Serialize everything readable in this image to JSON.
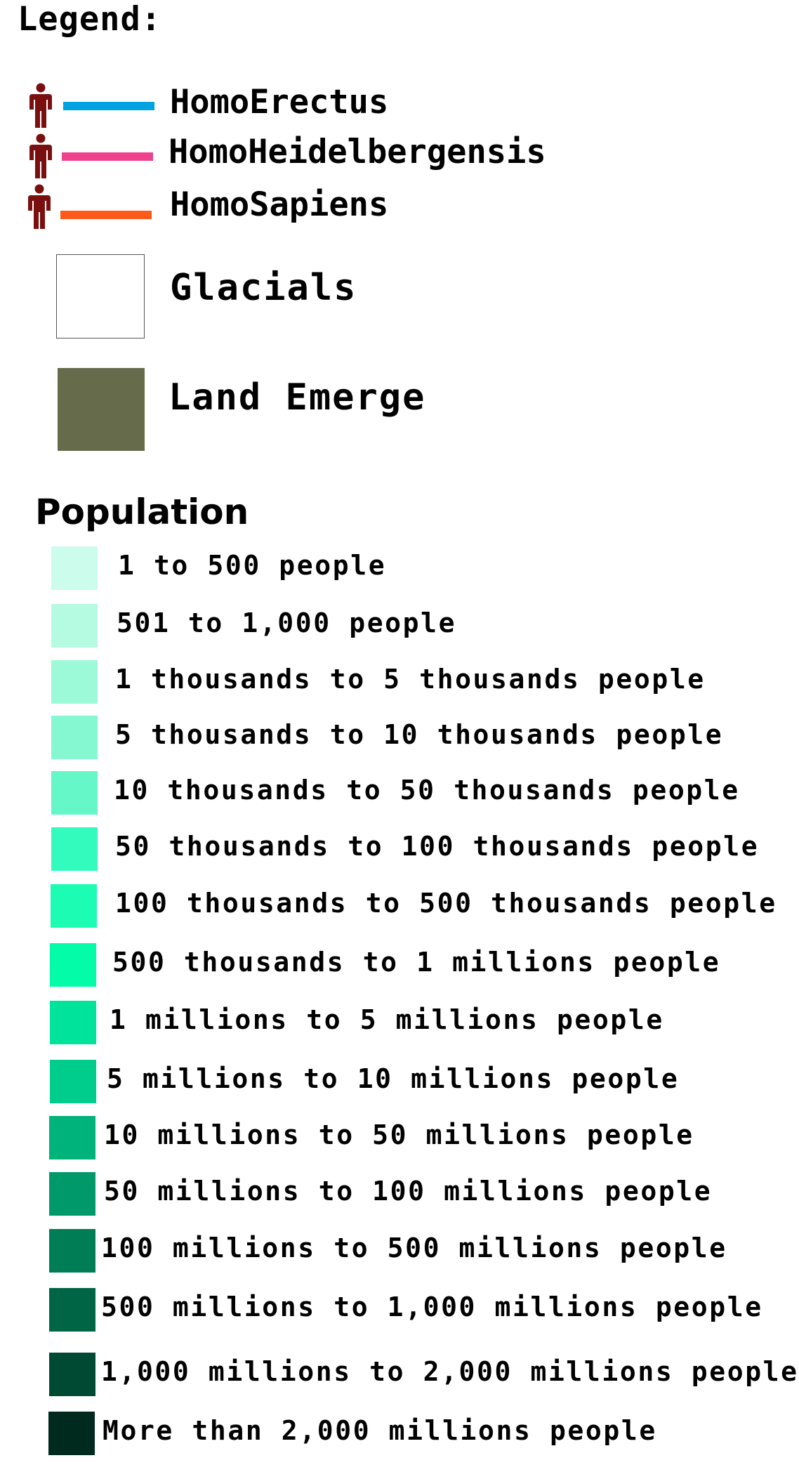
{
  "legend": {
    "title": "Legend:",
    "species": [
      {
        "label": "HomoErectus",
        "color": "#00a3e0",
        "icon": "person-icon",
        "icon_color": "#7a0f0f"
      },
      {
        "label": "HomoHeidelbergensis",
        "color": "#f0418e",
        "icon": "person-icon",
        "icon_color": "#7a0f0f"
      },
      {
        "label": "HomoSapiens",
        "color": "#ff5a1a",
        "icon": "person-icon",
        "icon_color": "#7a0f0f"
      }
    ],
    "areas": [
      {
        "label": "Glacials",
        "color": "#ffffff",
        "border": "#555555"
      },
      {
        "label": "Land Emerge",
        "color": "#666b4b"
      }
    ]
  },
  "population": {
    "title": "Population",
    "items": [
      {
        "label": "1 to 500 people",
        "color": "#ccfceb"
      },
      {
        "label": "501 to 1,000 people",
        "color": "#b5fbe1"
      },
      {
        "label": "1 thousands to 5 thousands people",
        "color": "#9cfad9"
      },
      {
        "label": "5 thousands to 10 thousands people",
        "color": "#85f8d1"
      },
      {
        "label": "10 thousands to 50 thousands people",
        "color": "#66f7c8"
      },
      {
        "label": "50 thousands to 100 thousands people",
        "color": "#33fbbd"
      },
      {
        "label": "100 thousands to 500 thousands people",
        "color": "#1cfcb3"
      },
      {
        "label": "500 thousands to 1 millions people",
        "color": "#03fca8"
      },
      {
        "label": "1 millions to 5 millions people",
        "color": "#00e39a"
      },
      {
        "label": "5 millions to 10 millions people",
        "color": "#00cc8b"
      },
      {
        "label": "10 millions to 50 millions people",
        "color": "#00b37b"
      },
      {
        "label": "50 millions to 100 millions people",
        "color": "#009a6a"
      },
      {
        "label": "100 millions to 500 millions people",
        "color": "#007d55"
      },
      {
        "label": "500 millions to 1,000 millions people",
        "color": "#006545"
      },
      {
        "label": "1,000 millions to 2,000 millions people",
        "color": "#004a33"
      },
      {
        "label": "More than 2,000 millions people",
        "color": "#002a1d"
      }
    ]
  }
}
